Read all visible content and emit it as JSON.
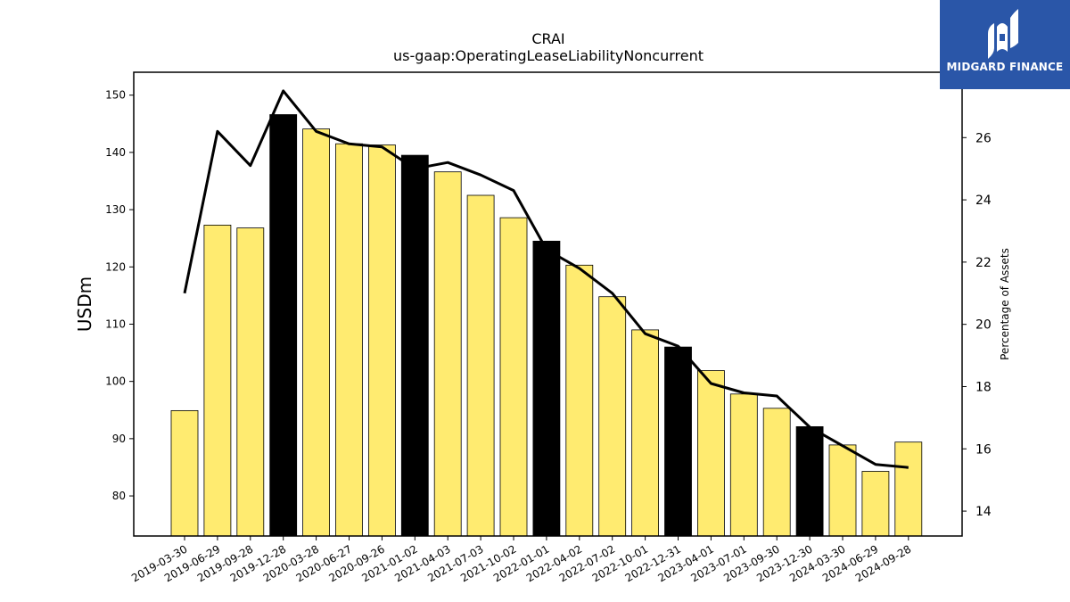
{
  "chart_data": {
    "type": "bar",
    "title": "CRAI",
    "subtitle": "us-gaap:OperatingLeaseLiabilityNoncurrent",
    "ylabel": "USDm",
    "y2label": "Percentage of Assets",
    "ylim": [
      73,
      154
    ],
    "y2lim": [
      13.2,
      28.1
    ],
    "yticks": [
      80,
      90,
      100,
      110,
      120,
      130,
      140,
      150
    ],
    "y2ticks": [
      14,
      16,
      18,
      20,
      22,
      24,
      26
    ],
    "categories": [
      "2019-03-30",
      "2019-06-29",
      "2019-09-28",
      "2019-12-28",
      "2020-03-28",
      "2020-06-27",
      "2020-09-26",
      "2021-01-02",
      "2021-04-03",
      "2021-07-03",
      "2021-10-02",
      "2022-01-01",
      "2022-04-02",
      "2022-07-02",
      "2022-10-01",
      "2022-12-31",
      "2023-04-01",
      "2023-07-01",
      "2023-09-30",
      "2023-12-30",
      "2024-03-30",
      "2024-06-29",
      "2024-09-28"
    ],
    "series": [
      {
        "type": "bar",
        "axis": "left",
        "values": [
          94.9,
          127.3,
          126.8,
          146.6,
          144.1,
          141.5,
          141.3,
          139.5,
          136.6,
          132.5,
          128.6,
          124.5,
          120.3,
          114.8,
          109.0,
          106.0,
          101.9,
          97.8,
          95.3,
          92.1,
          88.9,
          84.3,
          89.4
        ],
        "highlight": [
          false,
          false,
          false,
          true,
          false,
          false,
          false,
          true,
          false,
          false,
          false,
          true,
          false,
          false,
          false,
          true,
          false,
          false,
          false,
          true,
          false,
          false,
          false
        ]
      },
      {
        "type": "line",
        "axis": "right",
        "values": [
          21.0,
          26.2,
          25.1,
          27.5,
          26.2,
          25.8,
          25.7,
          25.0,
          25.2,
          24.8,
          24.3,
          22.4,
          21.8,
          21.0,
          19.7,
          19.3,
          18.1,
          17.8,
          17.7,
          16.7,
          16.1,
          15.5,
          15.4
        ]
      }
    ],
    "colors": {
      "bar": "#ffeb70",
      "bar_highlight": "#000000",
      "line": "#000000",
      "bar_edge": "#000000"
    },
    "grid": false
  },
  "logo": {
    "text": "MIDGARD FINANCE",
    "background": "#2a56a8",
    "icon": "midgard-logo-icon"
  }
}
